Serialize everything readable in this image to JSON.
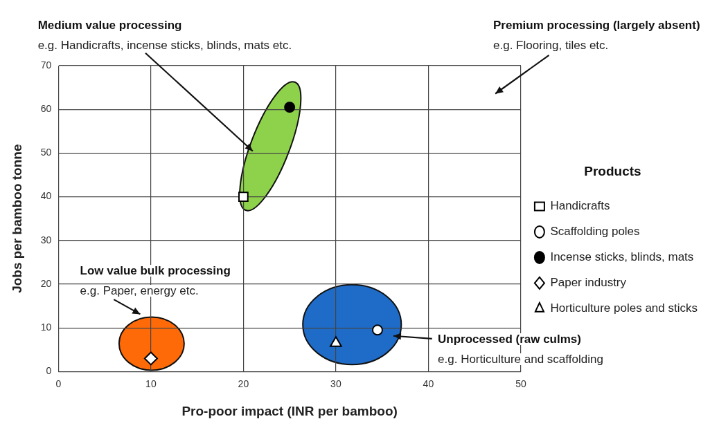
{
  "chart_data": {
    "type": "scatter",
    "xlabel": "Pro-poor impact (INR per bamboo)",
    "ylabel": "Jobs per bamboo tonne",
    "legend_title": "Products",
    "legend": "right",
    "grid": true,
    "xlim": [
      0,
      50
    ],
    "xticks": [
      0,
      10,
      20,
      30,
      40,
      50
    ],
    "ylim": [
      0,
      70
    ],
    "yticks": [
      0,
      10,
      20,
      30,
      40,
      50,
      60,
      70
    ],
    "series": [
      {
        "name": "Handicrafts",
        "color": "#ffffff",
        "marker": "square",
        "x": [
          20
        ],
        "values": [
          40
        ]
      },
      {
        "name": "Scaffolding poles",
        "color": "#ffffff",
        "marker": "circle",
        "x": [
          34.5
        ],
        "values": [
          9.5
        ]
      },
      {
        "name": "Incense sticks, blinds, mats",
        "color": "#000000",
        "marker": "circle",
        "x": [
          25
        ],
        "values": [
          60.5
        ]
      },
      {
        "name": "Paper industry",
        "color": "#ffffff",
        "marker": "diamond",
        "x": [
          10
        ],
        "values": [
          3
        ]
      },
      {
        "name": "Horticulture poles and sticks",
        "color": "#ffffff",
        "marker": "triangle",
        "x": [
          30
        ],
        "values": [
          6.5
        ]
      }
    ],
    "annotations": [
      "Medium value processing",
      "e.g. Handicrafts, incense sticks, blinds, mats etc.",
      "Premium processing (largely absent)",
      "e.g. Flooring, tiles etc.",
      "Low value bulk processing",
      "e.g. Paper, energy etc.",
      "Unprocessed (raw culms)",
      "e.g. Horticulture and scaffolding"
    ]
  }
}
